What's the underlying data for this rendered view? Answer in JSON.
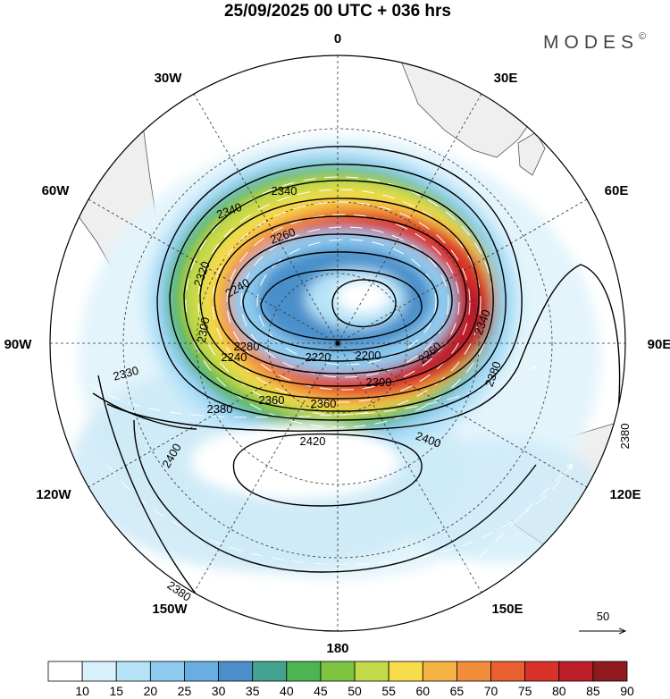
{
  "title": "25/09/2025  00 UTC  + 036 hrs",
  "brand": "MODES",
  "brand_mark": "©",
  "longitude_labels": [
    "0",
    "30E",
    "60E",
    "90E",
    "120E",
    "150E",
    "180",
    "150W",
    "120W",
    "90W",
    "60W",
    "30W"
  ],
  "contour_labels": [
    {
      "text": "2340"
    },
    {
      "text": "2340"
    },
    {
      "text": "2260"
    },
    {
      "text": "2320"
    },
    {
      "text": "2240"
    },
    {
      "text": "2300"
    },
    {
      "text": "2280"
    },
    {
      "text": "2240"
    },
    {
      "text": "2220"
    },
    {
      "text": "2200"
    },
    {
      "text": "2260"
    },
    {
      "text": "2340"
    },
    {
      "text": "2300"
    },
    {
      "text": "2360"
    },
    {
      "text": "2360"
    },
    {
      "text": "2380"
    },
    {
      "text": "2330"
    },
    {
      "text": "2420"
    },
    {
      "text": "2400"
    },
    {
      "text": "2400"
    },
    {
      "text": "2380"
    },
    {
      "text": "2380"
    },
    {
      "text": "2380"
    }
  ],
  "wind_reference": {
    "value": "50"
  },
  "colorbar": {
    "ticks": [
      "10",
      "15",
      "20",
      "25",
      "30",
      "35",
      "40",
      "45",
      "50",
      "55",
      "60",
      "65",
      "70",
      "75",
      "80",
      "85",
      "90"
    ],
    "colors": [
      "#ffffff",
      "#d8f1fc",
      "#b6e3f8",
      "#8ecbef",
      "#69aee0",
      "#4a8fca",
      "#44a390",
      "#4cb552",
      "#7dc440",
      "#c4d94a",
      "#f7dc4c",
      "#f5b344",
      "#f18c3b",
      "#e85f30",
      "#d8322b",
      "#bc1f2a",
      "#8f1a1e"
    ]
  },
  "colors": {
    "land": "#efefef",
    "coast": "#555555",
    "contour": "#000000",
    "vector": "#ffffff"
  }
}
